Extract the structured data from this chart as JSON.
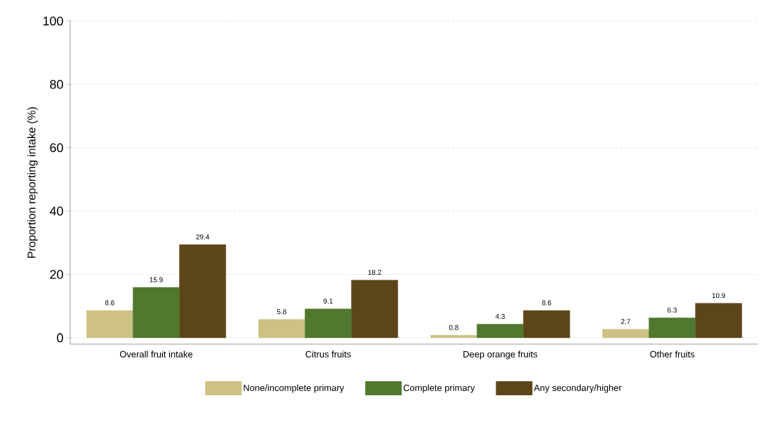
{
  "chart_data": {
    "type": "bar",
    "ylabel": "Proportion reporting intake (%)",
    "categories": [
      "Overall fruit intake",
      "Citrus fruits",
      "Deep orange fruits",
      "Other fruits"
    ],
    "series": [
      {
        "name": "None/incomplete primary",
        "color": "#cdc283",
        "values": [
          8.6,
          5.8,
          0.8,
          2.7
        ]
      },
      {
        "name": "Complete primary",
        "color": "#50782e",
        "values": [
          15.9,
          9.1,
          4.3,
          6.3
        ]
      },
      {
        "name": "Any secondary/higher",
        "color": "#5c4619",
        "values": [
          29.4,
          18.2,
          8.6,
          10.9
        ]
      }
    ],
    "ylim": [
      -2,
      100
    ],
    "yticks": [
      0,
      20,
      40,
      60,
      80,
      100
    ],
    "grid": "y",
    "legend": "bottom",
    "data_labels": true
  }
}
